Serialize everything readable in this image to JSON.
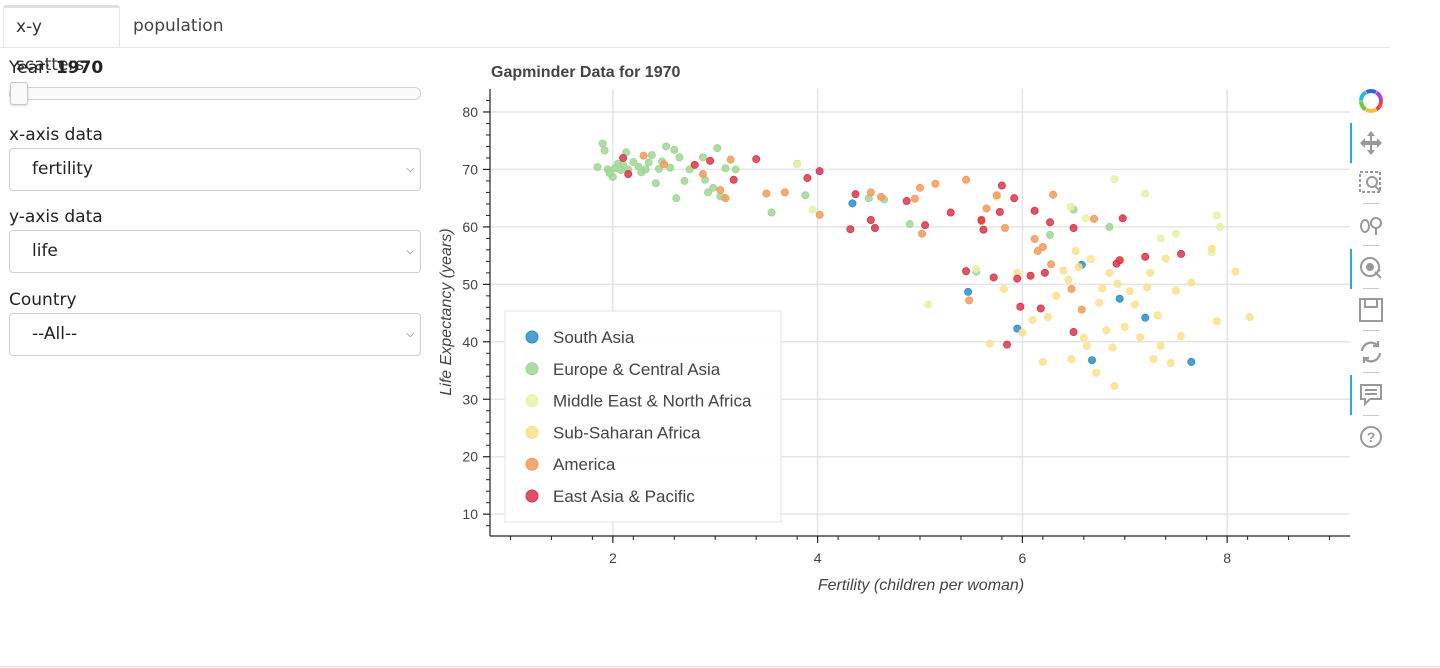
{
  "tabs": {
    "active": "x-y scatters",
    "inactive": "population"
  },
  "controls": {
    "year_label": "Year: ",
    "year_value": "1970",
    "year_fraction": 0.0,
    "xaxis_label": "x-axis data",
    "xaxis_value": "fertility",
    "yaxis_label": "y-axis data",
    "yaxis_value": "life",
    "country_label": "Country",
    "country_value": "--All--"
  },
  "toolbar": {
    "icons": [
      "bokeh-logo-icon",
      "pan-icon",
      "box-zoom-icon",
      "wheel-zoom-icon",
      "tap-icon",
      "save-icon",
      "reset-icon",
      "hover-icon",
      "help-icon"
    ]
  },
  "chart_data": {
    "type": "scatter",
    "title": "Gapminder Data for 1970",
    "xlabel": "Fertility (children per woman)",
    "ylabel": "Life Expectancy (years)",
    "xlim": [
      0.8,
      9.2
    ],
    "ylim": [
      6.2,
      84.0
    ],
    "xticks": [
      2,
      4,
      6,
      8
    ],
    "yticks": [
      10,
      20,
      30,
      40,
      50,
      60,
      70,
      80
    ],
    "grid": true,
    "legend_position": "bottom-left",
    "series": [
      {
        "name": "South Asia",
        "color": "#2c8fc9",
        "points": [
          [
            4.34,
            64.1
          ],
          [
            5.47,
            48.7
          ],
          [
            5.95,
            42.3
          ],
          [
            6.58,
            53.4
          ],
          [
            6.68,
            36.8
          ],
          [
            6.95,
            47.5
          ],
          [
            7.2,
            44.2
          ],
          [
            7.65,
            36.5
          ]
        ]
      },
      {
        "name": "Europe & Central Asia",
        "color": "#9fd694",
        "points": [
          [
            1.85,
            70.4
          ],
          [
            1.9,
            74.5
          ],
          [
            1.92,
            73.3
          ],
          [
            1.95,
            70.0
          ],
          [
            1.97,
            69.3
          ],
          [
            2.0,
            68.7
          ],
          [
            2.02,
            70.2
          ],
          [
            2.05,
            71.0
          ],
          [
            2.08,
            69.9
          ],
          [
            2.1,
            70.8
          ],
          [
            2.13,
            73.0
          ],
          [
            2.15,
            70.0
          ],
          [
            2.2,
            71.3
          ],
          [
            2.25,
            70.5
          ],
          [
            2.28,
            69.5
          ],
          [
            2.32,
            70.0
          ],
          [
            2.35,
            71.2
          ],
          [
            2.38,
            72.5
          ],
          [
            2.42,
            67.6
          ],
          [
            2.45,
            70.1
          ],
          [
            2.48,
            71.4
          ],
          [
            2.52,
            74.0
          ],
          [
            2.56,
            70.3
          ],
          [
            2.6,
            73.4
          ],
          [
            2.62,
            65.0
          ],
          [
            2.65,
            72.1
          ],
          [
            2.7,
            68.0
          ],
          [
            2.75,
            70.0
          ],
          [
            2.88,
            72.1
          ],
          [
            2.9,
            68.2
          ],
          [
            2.93,
            66.0
          ],
          [
            2.98,
            66.8
          ],
          [
            3.02,
            73.7
          ],
          [
            3.05,
            65.3
          ],
          [
            3.1,
            70.2
          ],
          [
            3.2,
            70.0
          ],
          [
            3.55,
            62.5
          ],
          [
            3.8,
            71.0
          ],
          [
            3.88,
            65.5
          ],
          [
            4.5,
            65.0
          ],
          [
            4.65,
            64.8
          ],
          [
            4.9,
            60.5
          ],
          [
            5.55,
            52.2
          ],
          [
            6.27,
            58.6
          ],
          [
            6.5,
            63.0
          ],
          [
            6.85,
            60.0
          ]
        ]
      },
      {
        "name": "Middle East & North Africa",
        "color": "#e8f2a5",
        "points": [
          [
            3.8,
            70.9
          ],
          [
            3.95,
            63.0
          ],
          [
            5.08,
            46.5
          ],
          [
            5.55,
            52.7
          ],
          [
            5.75,
            65.2
          ],
          [
            6.47,
            63.5
          ],
          [
            6.62,
            61.5
          ],
          [
            6.9,
            68.3
          ],
          [
            7.2,
            65.8
          ],
          [
            7.35,
            58.0
          ],
          [
            7.5,
            58.8
          ],
          [
            7.85,
            55.6
          ],
          [
            7.9,
            62.0
          ],
          [
            7.93,
            60.0
          ]
        ]
      },
      {
        "name": "Sub-Saharan Africa",
        "color": "#fbe08c",
        "points": [
          [
            5.68,
            39.7
          ],
          [
            5.82,
            49.2
          ],
          [
            5.95,
            52.0
          ],
          [
            6.0,
            41.6
          ],
          [
            6.1,
            43.8
          ],
          [
            6.2,
            36.5
          ],
          [
            6.25,
            44.3
          ],
          [
            6.33,
            48.0
          ],
          [
            6.4,
            52.4
          ],
          [
            6.45,
            50.8
          ],
          [
            6.48,
            37.0
          ],
          [
            6.52,
            55.8
          ],
          [
            6.55,
            53.0
          ],
          [
            6.6,
            40.7
          ],
          [
            6.63,
            39.3
          ],
          [
            6.67,
            54.4
          ],
          [
            6.72,
            34.6
          ],
          [
            6.75,
            46.8
          ],
          [
            6.78,
            49.3
          ],
          [
            6.82,
            42.0
          ],
          [
            6.85,
            52.0
          ],
          [
            6.88,
            39.0
          ],
          [
            6.9,
            32.3
          ],
          [
            6.93,
            50.1
          ],
          [
            6.96,
            54.2
          ],
          [
            7.0,
            42.6
          ],
          [
            7.05,
            48.8
          ],
          [
            7.1,
            46.5
          ],
          [
            7.15,
            40.8
          ],
          [
            7.22,
            49.5
          ],
          [
            7.25,
            52.0
          ],
          [
            7.28,
            37.0
          ],
          [
            7.32,
            44.6
          ],
          [
            7.35,
            39.3
          ],
          [
            7.4,
            54.5
          ],
          [
            7.45,
            36.3
          ],
          [
            7.5,
            48.9
          ],
          [
            7.55,
            41.0
          ],
          [
            7.65,
            50.3
          ],
          [
            7.85,
            56.2
          ],
          [
            7.9,
            43.6
          ],
          [
            8.08,
            52.2
          ],
          [
            8.22,
            44.3
          ]
        ]
      },
      {
        "name": "America",
        "color": "#f59a5a",
        "points": [
          [
            2.3,
            72.4
          ],
          [
            2.5,
            70.9
          ],
          [
            2.88,
            69.2
          ],
          [
            3.05,
            66.4
          ],
          [
            3.1,
            65.0
          ],
          [
            3.15,
            71.7
          ],
          [
            3.5,
            65.8
          ],
          [
            3.68,
            66.0
          ],
          [
            4.02,
            62.1
          ],
          [
            4.52,
            66.0
          ],
          [
            4.62,
            65.2
          ],
          [
            4.95,
            64.9
          ],
          [
            5.0,
            66.8
          ],
          [
            5.02,
            58.8
          ],
          [
            5.15,
            67.5
          ],
          [
            5.45,
            68.2
          ],
          [
            5.6,
            61.0
          ],
          [
            5.65,
            63.2
          ],
          [
            5.75,
            65.5
          ],
          [
            5.83,
            59.8
          ],
          [
            6.12,
            57.9
          ],
          [
            6.15,
            55.8
          ],
          [
            6.2,
            56.5
          ],
          [
            6.28,
            53.5
          ],
          [
            6.3,
            65.6
          ],
          [
            6.48,
            49.2
          ],
          [
            6.58,
            45.6
          ],
          [
            6.7,
            61.4
          ],
          [
            5.48,
            47.2
          ]
        ]
      },
      {
        "name": "East Asia & Pacific",
        "color": "#d9354a",
        "points": [
          [
            2.1,
            72.0
          ],
          [
            2.15,
            69.2
          ],
          [
            2.8,
            70.8
          ],
          [
            2.95,
            71.5
          ],
          [
            3.18,
            68.2
          ],
          [
            3.4,
            71.8
          ],
          [
            3.9,
            68.5
          ],
          [
            4.02,
            69.7
          ],
          [
            4.32,
            59.6
          ],
          [
            4.37,
            65.7
          ],
          [
            4.52,
            61.2
          ],
          [
            4.56,
            59.8
          ],
          [
            4.87,
            64.5
          ],
          [
            5.05,
            60.3
          ],
          [
            5.3,
            62.5
          ],
          [
            5.45,
            52.3
          ],
          [
            5.6,
            61.2
          ],
          [
            5.62,
            59.5
          ],
          [
            5.72,
            51.2
          ],
          [
            5.78,
            62.6
          ],
          [
            5.8,
            67.2
          ],
          [
            5.92,
            65.0
          ],
          [
            5.95,
            51.0
          ],
          [
            5.98,
            46.1
          ],
          [
            6.08,
            51.5
          ],
          [
            6.12,
            62.8
          ],
          [
            6.18,
            45.8
          ],
          [
            6.22,
            52.0
          ],
          [
            6.27,
            60.8
          ],
          [
            6.5,
            59.8
          ],
          [
            6.5,
            41.7
          ],
          [
            6.92,
            53.6
          ],
          [
            6.95,
            54.2
          ],
          [
            6.98,
            61.5
          ],
          [
            7.2,
            54.8
          ],
          [
            7.55,
            55.3
          ],
          [
            5.85,
            39.5
          ]
        ]
      }
    ]
  }
}
